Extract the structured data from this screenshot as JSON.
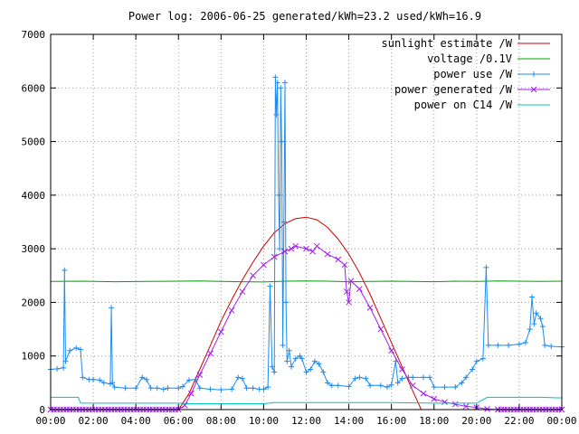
{
  "chart_data": {
    "type": "line",
    "title": "Power log: 2006-06-25 generated/kWh=23.2 used/kWh=16.9",
    "xlabel": "",
    "ylabel": "",
    "xlim": [
      0,
      24
    ],
    "ylim": [
      0,
      7000
    ],
    "x_ticks": [
      {
        "value": 0,
        "label": "00:00"
      },
      {
        "value": 2,
        "label": "02:00"
      },
      {
        "value": 4,
        "label": "04:00"
      },
      {
        "value": 6,
        "label": "06:00"
      },
      {
        "value": 8,
        "label": "08:00"
      },
      {
        "value": 10,
        "label": "10:00"
      },
      {
        "value": 12,
        "label": "12:00"
      },
      {
        "value": 14,
        "label": "14:00"
      },
      {
        "value": 16,
        "label": "16:00"
      },
      {
        "value": 18,
        "label": "18:00"
      },
      {
        "value": 20,
        "label": "20:00"
      },
      {
        "value": 22,
        "label": "22:00"
      },
      {
        "value": 24,
        "label": "00:00"
      }
    ],
    "y_ticks": [
      0,
      1000,
      2000,
      3000,
      4000,
      5000,
      6000,
      7000
    ],
    "grid": true,
    "legend_position": "top-right",
    "series": [
      {
        "name": "sunlight estimate /W",
        "color": "#cc0000",
        "marker": "none",
        "points": [
          [
            0,
            0
          ],
          [
            6.0,
            0
          ],
          [
            6.5,
            300
          ],
          [
            7.0,
            750
          ],
          [
            7.5,
            1200
          ],
          [
            8.0,
            1650
          ],
          [
            8.5,
            2050
          ],
          [
            9.0,
            2420
          ],
          [
            9.5,
            2750
          ],
          [
            10.0,
            3050
          ],
          [
            10.5,
            3300
          ],
          [
            11.0,
            3470
          ],
          [
            11.5,
            3560
          ],
          [
            12.0,
            3590
          ],
          [
            12.5,
            3540
          ],
          [
            13.0,
            3400
          ],
          [
            13.5,
            3180
          ],
          [
            14.0,
            2900
          ],
          [
            14.5,
            2550
          ],
          [
            15.0,
            2150
          ],
          [
            15.5,
            1700
          ],
          [
            16.0,
            1250
          ],
          [
            16.5,
            800
          ],
          [
            17.0,
            350
          ],
          [
            17.4,
            0
          ],
          [
            24,
            0
          ]
        ]
      },
      {
        "name": "voltage /0.1V",
        "color": "#00a000",
        "marker": "none",
        "points": [
          [
            0,
            2390
          ],
          [
            1.5,
            2395
          ],
          [
            3,
            2385
          ],
          [
            4.5,
            2390
          ],
          [
            6,
            2395
          ],
          [
            7,
            2400
          ],
          [
            8,
            2390
          ],
          [
            9,
            2385
          ],
          [
            10,
            2380
          ],
          [
            11,
            2395
          ],
          [
            12,
            2400
          ],
          [
            13,
            2395
          ],
          [
            14,
            2385
          ],
          [
            15,
            2390
          ],
          [
            16,
            2395
          ],
          [
            17,
            2390
          ],
          [
            18,
            2385
          ],
          [
            19,
            2395
          ],
          [
            20,
            2390
          ],
          [
            21,
            2400
          ],
          [
            22,
            2395
          ],
          [
            23,
            2390
          ],
          [
            24,
            2395
          ]
        ]
      },
      {
        "name": "power use /W",
        "color": "#1e8cf0",
        "marker": "plus",
        "points": [
          [
            0,
            750
          ],
          [
            0.3,
            760
          ],
          [
            0.6,
            780
          ],
          [
            0.65,
            2600
          ],
          [
            0.7,
            900
          ],
          [
            0.9,
            1100
          ],
          [
            1.2,
            1150
          ],
          [
            1.4,
            1120
          ],
          [
            1.5,
            600
          ],
          [
            1.8,
            560
          ],
          [
            2.0,
            560
          ],
          [
            2.3,
            550
          ],
          [
            2.5,
            500
          ],
          [
            2.8,
            480
          ],
          [
            2.85,
            1900
          ],
          [
            2.9,
            500
          ],
          [
            3.0,
            420
          ],
          [
            3.5,
            400
          ],
          [
            4.0,
            400
          ],
          [
            4.3,
            600
          ],
          [
            4.5,
            560
          ],
          [
            4.7,
            400
          ],
          [
            5.0,
            400
          ],
          [
            5.3,
            380
          ],
          [
            5.5,
            400
          ],
          [
            6.0,
            400
          ],
          [
            6.2,
            430
          ],
          [
            6.5,
            550
          ],
          [
            6.8,
            560
          ],
          [
            7.0,
            400
          ],
          [
            7.5,
            380
          ],
          [
            8.0,
            370
          ],
          [
            8.5,
            380
          ],
          [
            8.8,
            600
          ],
          [
            9.0,
            580
          ],
          [
            9.2,
            400
          ],
          [
            9.5,
            400
          ],
          [
            9.8,
            380
          ],
          [
            10.0,
            380
          ],
          [
            10.2,
            420
          ],
          [
            10.3,
            2300
          ],
          [
            10.4,
            800
          ],
          [
            10.5,
            700
          ],
          [
            10.55,
            6200
          ],
          [
            10.6,
            5500
          ],
          [
            10.65,
            6100
          ],
          [
            10.7,
            4000
          ],
          [
            10.75,
            3000
          ],
          [
            10.8,
            6000
          ],
          [
            10.85,
            5000
          ],
          [
            10.9,
            1200
          ],
          [
            10.95,
            3500
          ],
          [
            11.0,
            6100
          ],
          [
            11.05,
            2000
          ],
          [
            11.1,
            900
          ],
          [
            11.2,
            1100
          ],
          [
            11.3,
            800
          ],
          [
            11.5,
            950
          ],
          [
            11.7,
            1000
          ],
          [
            11.8,
            950
          ],
          [
            12.0,
            700
          ],
          [
            12.2,
            750
          ],
          [
            12.4,
            900
          ],
          [
            12.6,
            850
          ],
          [
            12.8,
            700
          ],
          [
            13.0,
            500
          ],
          [
            13.2,
            450
          ],
          [
            13.5,
            450
          ],
          [
            14.0,
            430
          ],
          [
            14.3,
            580
          ],
          [
            14.5,
            600
          ],
          [
            14.8,
            580
          ],
          [
            15.0,
            450
          ],
          [
            15.5,
            450
          ],
          [
            15.8,
            420
          ],
          [
            16.0,
            460
          ],
          [
            16.2,
            900
          ],
          [
            16.3,
            500
          ],
          [
            16.5,
            580
          ],
          [
            16.8,
            600
          ],
          [
            17.0,
            600
          ],
          [
            17.5,
            600
          ],
          [
            17.8,
            600
          ],
          [
            18.0,
            420
          ],
          [
            18.5,
            420
          ],
          [
            19.0,
            420
          ],
          [
            19.3,
            500
          ],
          [
            19.5,
            600
          ],
          [
            19.8,
            750
          ],
          [
            20.0,
            900
          ],
          [
            20.3,
            950
          ],
          [
            20.45,
            2650
          ],
          [
            20.55,
            1200
          ],
          [
            21.0,
            1200
          ],
          [
            21.5,
            1200
          ],
          [
            22.0,
            1220
          ],
          [
            22.3,
            1250
          ],
          [
            22.5,
            1500
          ],
          [
            22.6,
            2100
          ],
          [
            22.7,
            1600
          ],
          [
            22.8,
            1800
          ],
          [
            23.0,
            1700
          ],
          [
            23.1,
            1550
          ],
          [
            23.2,
            1200
          ],
          [
            23.5,
            1180
          ],
          [
            24,
            1170
          ]
        ]
      },
      {
        "name": "power generated /W",
        "color": "#a020f0",
        "marker": "cross",
        "points": [
          [
            0,
            0
          ],
          [
            6.0,
            0
          ],
          [
            6.3,
            80
          ],
          [
            6.6,
            300
          ],
          [
            7.0,
            650
          ],
          [
            7.5,
            1050
          ],
          [
            8.0,
            1450
          ],
          [
            8.5,
            1850
          ],
          [
            9.0,
            2200
          ],
          [
            9.5,
            2500
          ],
          [
            10.0,
            2700
          ],
          [
            10.5,
            2850
          ],
          [
            11.0,
            2950
          ],
          [
            11.3,
            3000
          ],
          [
            11.5,
            3050
          ],
          [
            12.0,
            3000
          ],
          [
            12.3,
            2950
          ],
          [
            12.5,
            3050
          ],
          [
            13.0,
            2900
          ],
          [
            13.5,
            2800
          ],
          [
            13.8,
            2700
          ],
          [
            13.9,
            2200
          ],
          [
            14.0,
            2000
          ],
          [
            14.1,
            2400
          ],
          [
            14.5,
            2250
          ],
          [
            15.0,
            1900
          ],
          [
            15.5,
            1500
          ],
          [
            16.0,
            1100
          ],
          [
            16.5,
            750
          ],
          [
            17.0,
            450
          ],
          [
            17.5,
            300
          ],
          [
            18.0,
            200
          ],
          [
            18.5,
            140
          ],
          [
            19.0,
            100
          ],
          [
            19.5,
            60
          ],
          [
            20.0,
            40
          ],
          [
            20.5,
            10
          ],
          [
            21.0,
            0
          ],
          [
            24,
            0
          ]
        ]
      },
      {
        "name": "power on C14 /W",
        "color": "#00c0c0",
        "marker": "none",
        "points": [
          [
            0,
            230
          ],
          [
            1.3,
            230
          ],
          [
            1.4,
            120
          ],
          [
            6.0,
            120
          ],
          [
            6.5,
            110
          ],
          [
            10.0,
            110
          ],
          [
            10.5,
            130
          ],
          [
            14.0,
            130
          ],
          [
            16.0,
            130
          ],
          [
            18.0,
            120
          ],
          [
            20.0,
            120
          ],
          [
            20.5,
            230
          ],
          [
            23.0,
            230
          ],
          [
            23.8,
            220
          ],
          [
            24,
            220
          ]
        ]
      }
    ]
  }
}
